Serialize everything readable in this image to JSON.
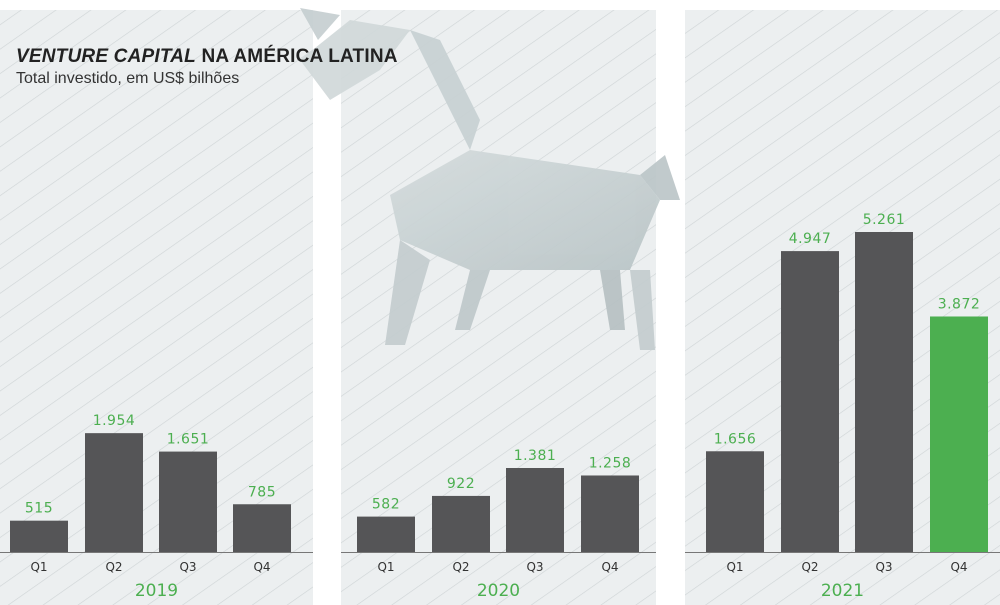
{
  "title_italic": "VENTURE CAPITAL",
  "title_rest": " NA AMÉRICA LATINA",
  "subtitle": "Total investido, em US$ bilhões",
  "colors": {
    "bar": "#555557",
    "highlight": "#4caf50",
    "panel": "#e9eced",
    "stripe": "#d6dadc"
  },
  "chart_data": [
    {
      "type": "bar",
      "year": "2019",
      "categories": [
        "Q1",
        "Q2",
        "Q3",
        "Q4"
      ],
      "values": [
        515,
        1954,
        1651,
        785
      ],
      "labels": [
        "515",
        "1.954",
        "1.651",
        "785"
      ],
      "ylim": [
        0,
        5500
      ]
    },
    {
      "type": "bar",
      "year": "2020",
      "categories": [
        "Q1",
        "Q2",
        "Q3",
        "Q4"
      ],
      "values": [
        582,
        922,
        1381,
        1258
      ],
      "labels": [
        "582",
        "922",
        "1.381",
        "1.258"
      ],
      "ylim": [
        0,
        5500
      ]
    },
    {
      "type": "bar",
      "year": "2021",
      "categories": [
        "Q1",
        "Q2",
        "Q3",
        "Q4"
      ],
      "values": [
        1656,
        4947,
        5261,
        3872
      ],
      "labels": [
        "1.656",
        "4.947",
        "5.261",
        "3.872"
      ],
      "highlight_index": 3,
      "ylim": [
        0,
        5500
      ]
    }
  ]
}
